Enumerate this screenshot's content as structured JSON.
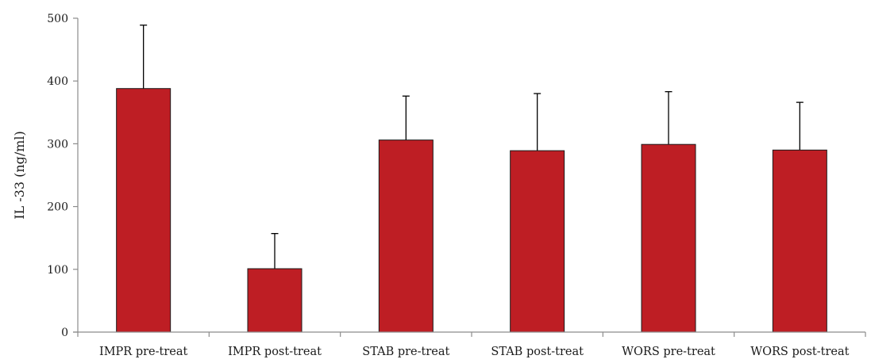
{
  "chart_data": {
    "type": "bar",
    "title": "",
    "xlabel": "",
    "ylabel": "IL -33 (ng/ml)",
    "ylim": [
      0,
      500
    ],
    "yticks": [
      0,
      100,
      200,
      300,
      400,
      500
    ],
    "grid": false,
    "categories": [
      "IMPR pre-treat",
      "IMPR post-treat",
      "STAB pre-treat",
      "STAB post-treat",
      "WORS pre-treat",
      "WORS post-treat"
    ],
    "values": [
      388,
      101,
      306,
      289,
      299,
      290
    ],
    "error_upper": [
      101,
      56,
      70,
      91,
      84,
      76
    ],
    "bar_color": "#be1e24",
    "error_bar_color": "#000000"
  }
}
